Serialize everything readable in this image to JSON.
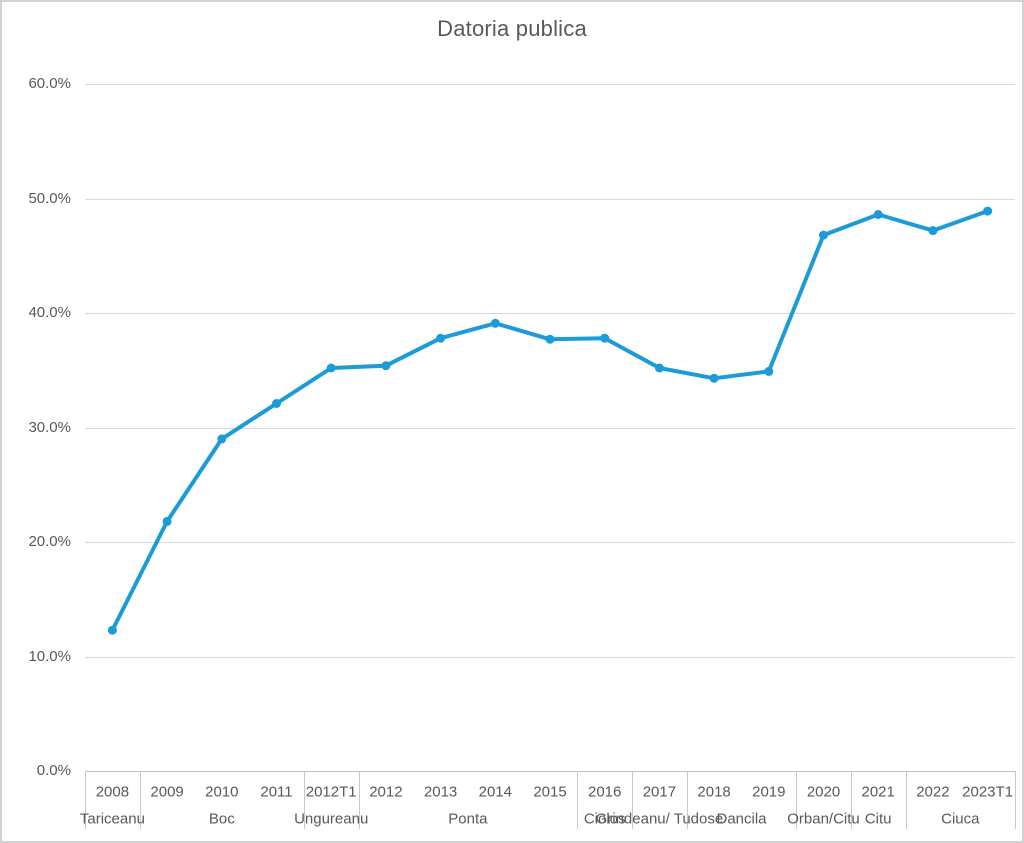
{
  "title": "Datoria publica",
  "colors": {
    "line": "#1b9bd7",
    "grid": "#d9d9d9",
    "axis": "#bfbfbf",
    "separator": "#c8c8c8",
    "text": "#595959",
    "border": "#d2d2d2",
    "background": "#ffffff"
  },
  "y_axis": {
    "ticks": [
      {
        "label": "60.0%",
        "value": 60
      },
      {
        "label": "50.0%",
        "value": 50
      },
      {
        "label": "40.0%",
        "value": 40
      },
      {
        "label": "30.0%",
        "value": 30
      },
      {
        "label": "20.0%",
        "value": 20
      },
      {
        "label": "10.0%",
        "value": 10
      },
      {
        "label": "0.0%",
        "value": 0
      }
    ]
  },
  "chart_data": {
    "type": "line",
    "title": "Datoria publica",
    "categories": [
      "2008",
      "2009",
      "2010",
      "2011",
      "2012T1",
      "2012",
      "2013",
      "2014",
      "2015",
      "2016",
      "2017",
      "2018",
      "2019",
      "2020",
      "2021",
      "2022",
      "2023T1"
    ],
    "values": [
      12.3,
      21.8,
      29.0,
      32.1,
      35.2,
      35.4,
      37.8,
      39.1,
      37.7,
      37.8,
      35.2,
      34.3,
      34.9,
      46.8,
      48.6,
      47.2,
      48.9
    ],
    "unit": "%",
    "xlabel": "",
    "ylabel": "",
    "ylim": [
      0,
      60
    ],
    "y_step": 10,
    "grid": true,
    "legend": false,
    "marker": "circle",
    "groups": [
      {
        "label": "Tariceanu",
        "span": 1
      },
      {
        "label": "Boc",
        "span": 3
      },
      {
        "label": "Ungureanu",
        "span": 1
      },
      {
        "label": "Ponta",
        "span": 4
      },
      {
        "label": "Ciolos",
        "span": 1
      },
      {
        "label": "Grindeanu/ Tudose",
        "span": 1
      },
      {
        "label": "Dancila",
        "span": 2
      },
      {
        "label": "Orban/Citu",
        "span": 1
      },
      {
        "label": "Citu",
        "span": 1
      },
      {
        "label": "Ciuca",
        "span": 2
      }
    ]
  }
}
